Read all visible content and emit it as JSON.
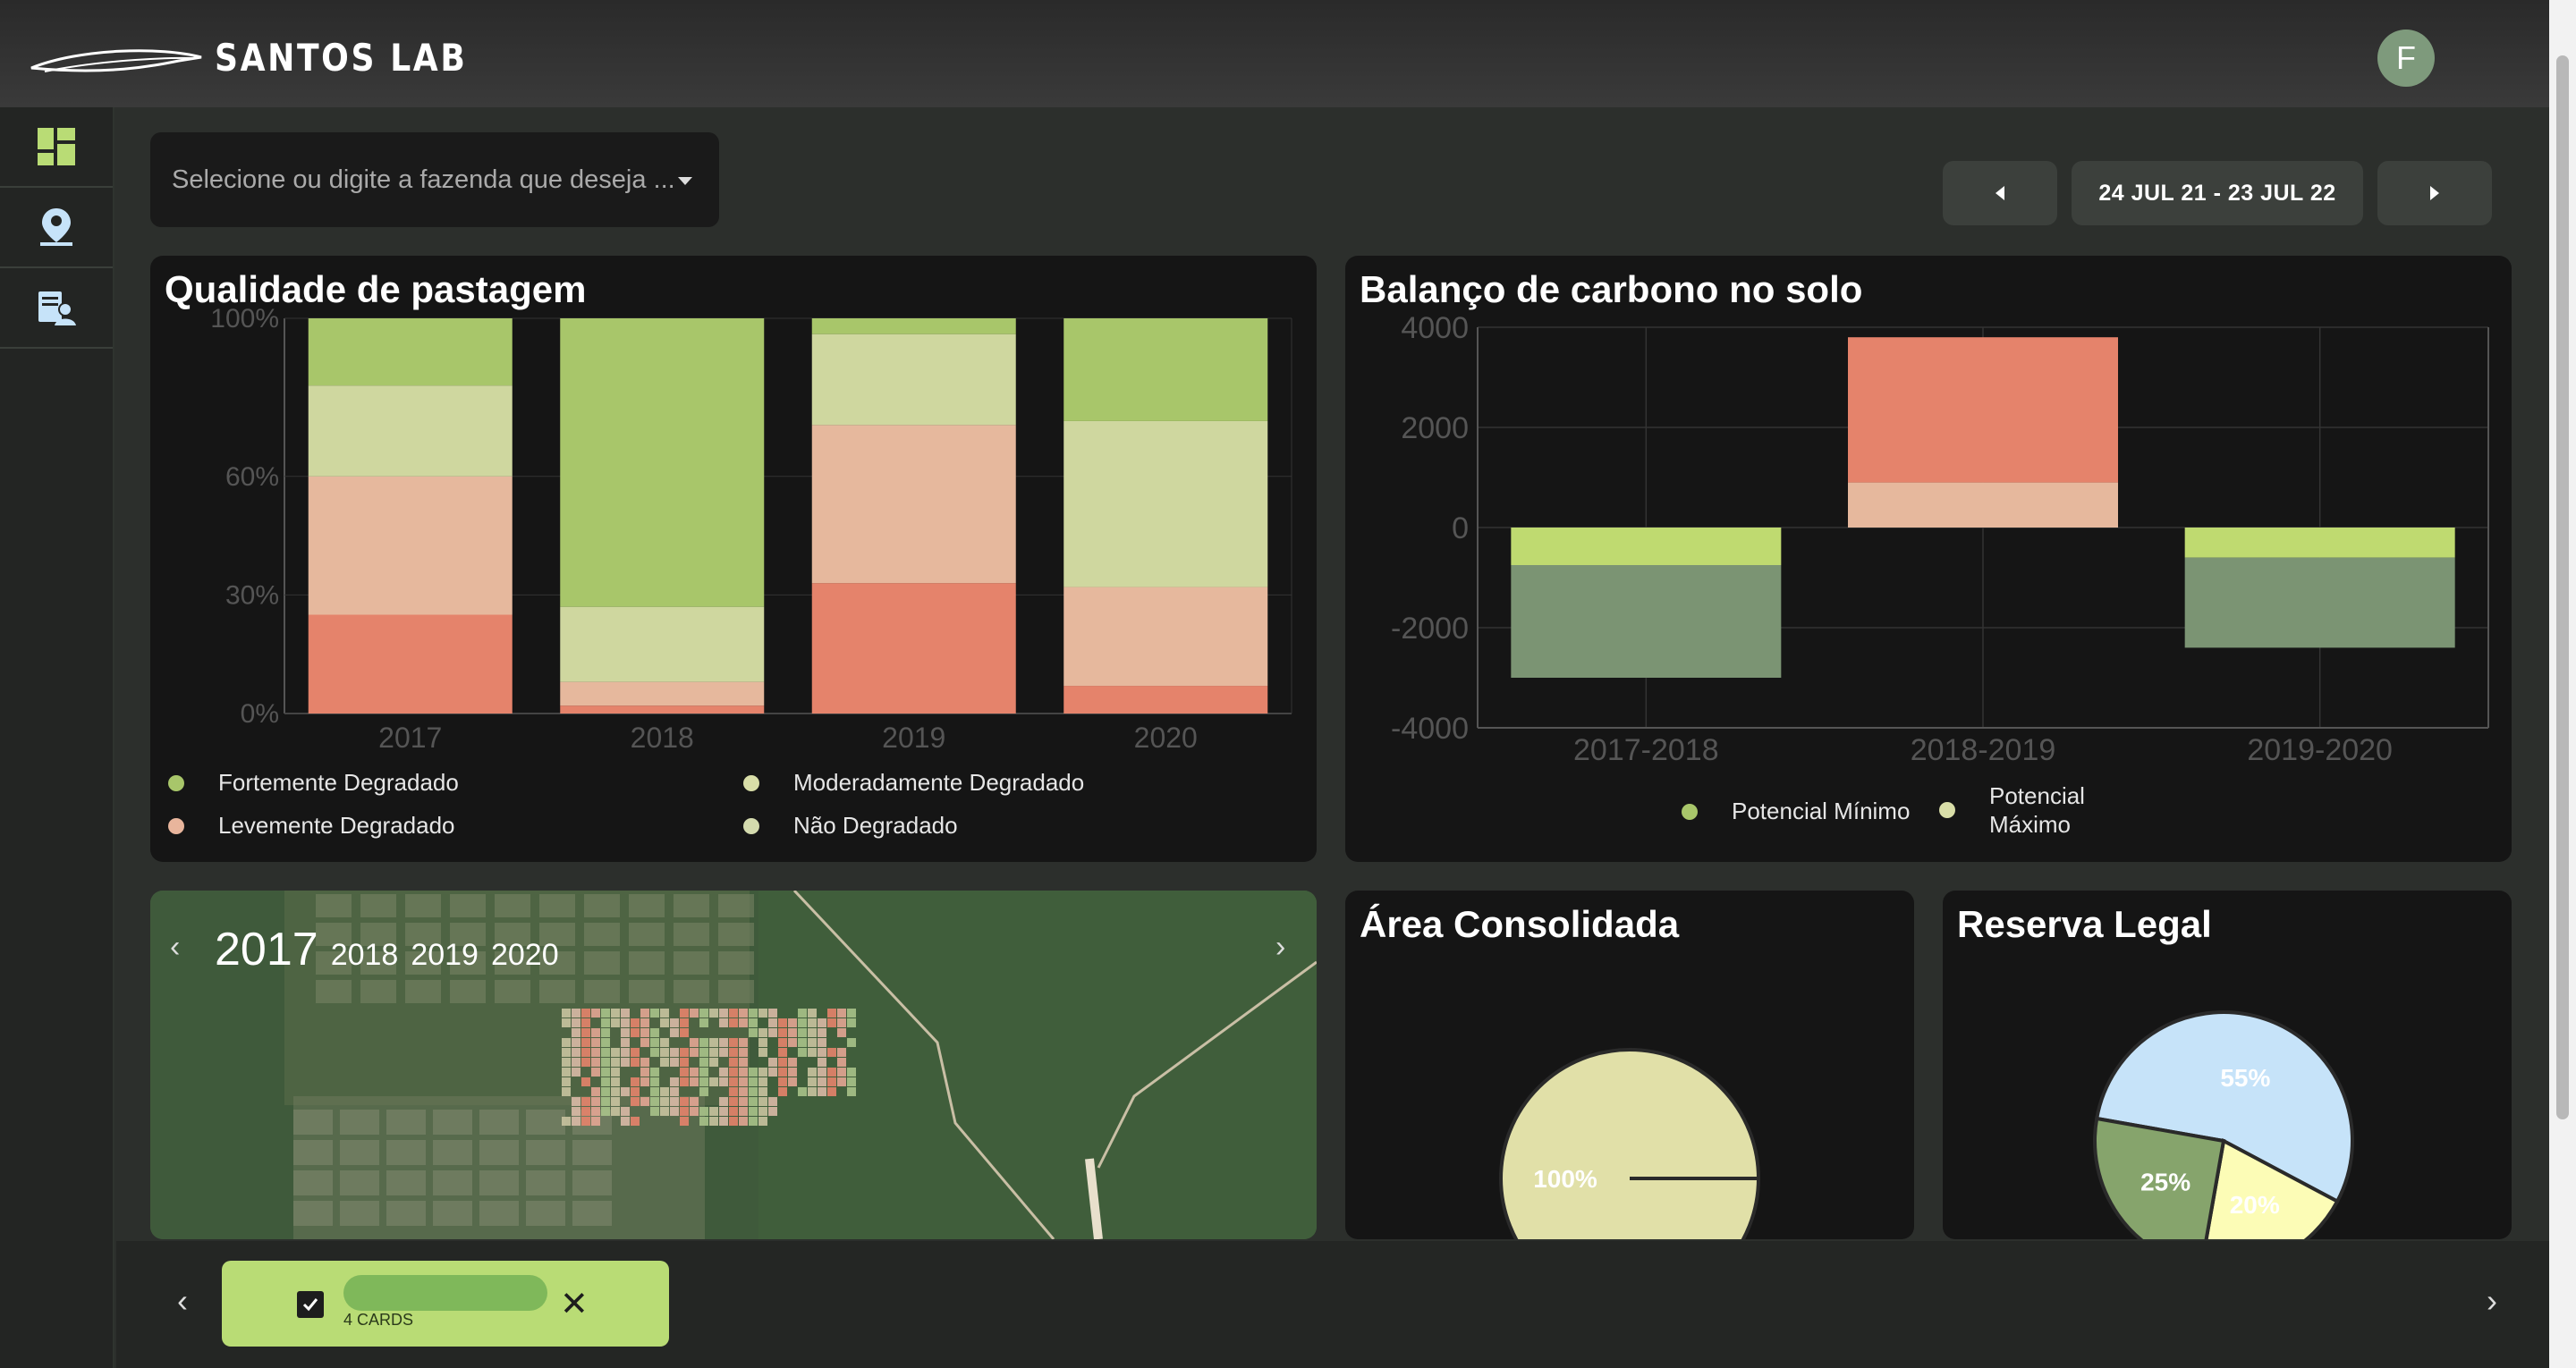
{
  "app": {
    "brand": "SANTOS LAB",
    "user_initial": "F"
  },
  "sidebar": {
    "items": [
      {
        "icon": "dashboard-icon"
      },
      {
        "icon": "map-pin-user-icon"
      },
      {
        "icon": "user-list-icon"
      }
    ]
  },
  "filter": {
    "farm_placeholder": "Selecione ou digite a fazenda que deseja ..."
  },
  "date_nav": {
    "range": "24 JUL 21 - 23 JUL 22",
    "prev_icon": "caret-left-icon",
    "next_icon": "caret-right-icon"
  },
  "cards": {
    "pasture_title": "Qualidade de pastagem",
    "carbon_title": "Balanço de carbono no solo",
    "consolidated_title": "Área Consolidada",
    "reserve_title": "Reserva Legal"
  },
  "pasture_legend": [
    "Fortemente Degradado",
    "Moderadamente Degradado",
    "Levemente Degradado",
    "Não Degradado"
  ],
  "carbon_legend": [
    "Potencial Mínimo",
    "Potencial Máximo"
  ],
  "map": {
    "years": [
      "2017",
      "2018",
      "2019",
      "2020"
    ],
    "active_year": "2017"
  },
  "footer": {
    "chip_sub": "4 CARDS"
  },
  "chart_data": [
    {
      "type": "bar",
      "stacked": true,
      "title": "Qualidade de pastagem",
      "categories": [
        "2017",
        "2018",
        "2019",
        "2020"
      ],
      "ytick_labels": [
        "0%",
        "30%",
        "60%",
        "100%"
      ],
      "ylim": [
        0,
        100
      ],
      "series": [
        {
          "color": "#e5836b",
          "values": [
            25,
            2,
            33,
            7
          ]
        },
        {
          "color": "#e6b89d",
          "values": [
            35,
            6,
            40,
            25
          ]
        },
        {
          "color": "#cfd79f",
          "values": [
            23,
            19,
            23,
            42
          ]
        },
        {
          "color": "#a8c66a",
          "values": [
            17,
            73,
            4,
            26
          ]
        }
      ],
      "legend": [
        "Fortemente Degradado",
        "Moderadamente Degradado",
        "Levemente Degradado",
        "Não Degradado"
      ],
      "legend_colors": [
        "#a8c66a",
        "#d9dea8",
        "#e8b59c",
        "#d4dbae"
      ]
    },
    {
      "type": "bar",
      "stacked": true,
      "title": "Balanço de carbono no solo",
      "categories": [
        "2017-2018",
        "2018-2019",
        "2019-2020"
      ],
      "yticks": [
        4000,
        2000,
        0,
        -2000,
        -4000
      ],
      "ylim": [
        -4000,
        4000
      ],
      "bars": [
        {
          "positive": [],
          "negative": [
            {
              "color": "#bfda70",
              "value": -750
            },
            {
              "color": "#7b9473",
              "value": -2250
            }
          ]
        },
        {
          "positive": [
            {
              "color": "#e6b89d",
              "value": 900
            },
            {
              "color": "#e5836b",
              "value": 2900
            }
          ],
          "negative": []
        },
        {
          "positive": [],
          "negative": [
            {
              "color": "#bfda70",
              "value": -600
            },
            {
              "color": "#7b9473",
              "value": -1800
            }
          ]
        }
      ],
      "legend": [
        "Potencial Mínimo",
        "Potencial Máximo"
      ],
      "legend_colors": [
        "#a8c66a",
        "#d9dea8"
      ],
      "grid": true
    },
    {
      "type": "pie",
      "title": "Área Consolidada",
      "slices": [
        {
          "label": "100%",
          "value": 100,
          "color": "#e1e0a8"
        }
      ]
    },
    {
      "type": "pie",
      "title": "Reserva Legal",
      "slices": [
        {
          "label": "55%",
          "value": 55,
          "color": "#c6e3f9"
        },
        {
          "label": "20%",
          "value": 20,
          "color": "#fcfcb6"
        },
        {
          "label": "25%",
          "value": 25,
          "color": "#86a46c"
        }
      ]
    }
  ]
}
